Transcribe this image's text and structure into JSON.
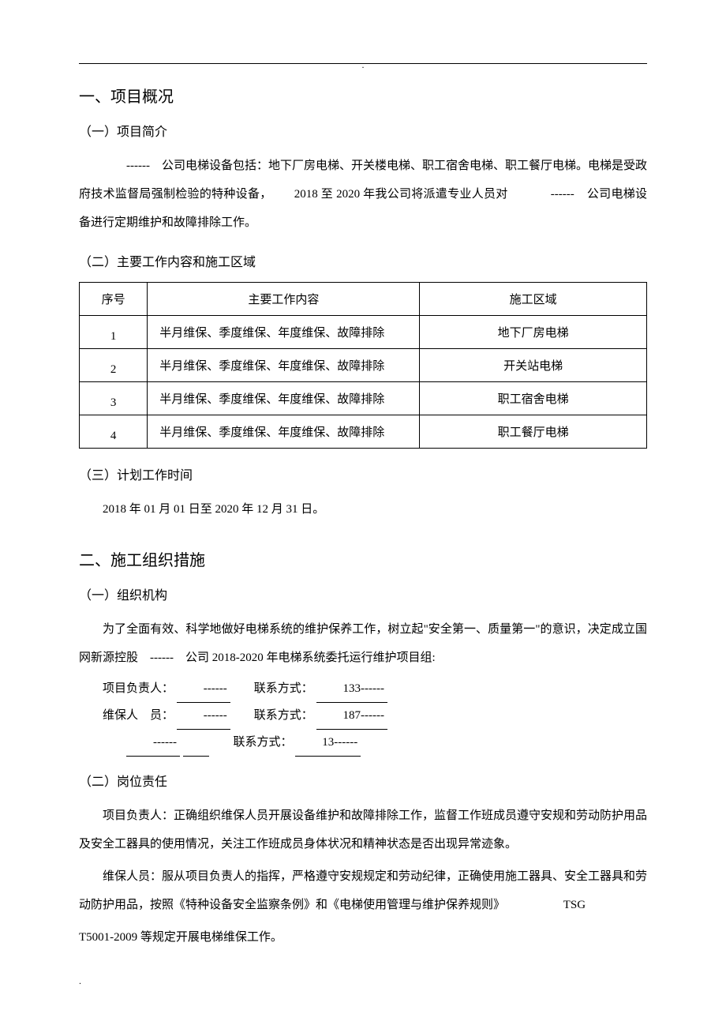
{
  "header_dot": ".",
  "section1": {
    "title": "一、项目概况",
    "sub1": {
      "title": "（一）项目简介",
      "p1_prefix": "------",
      "p1_text": "公司电梯设备包括：地下厂房电梯、开关楼电梯、职工宿舍电梯、职工餐厅电梯。电梯是受政府技术监督局强制检验的特种设备，",
      "p1_year": "2018 至 2020 年我公司将派遣专业人员对",
      "p1_fill": "------",
      "p1_suffix": "公司电梯设备进行定期维护和故障排除工作。"
    },
    "sub2": {
      "title": "（二）主要工作内容和施工区域",
      "table": {
        "headers": [
          "序号",
          "主要工作内容",
          "施工区域"
        ],
        "rows": [
          [
            "1",
            "半月维保、季度维保、年度维保、故障排除",
            "地下厂房电梯"
          ],
          [
            "2",
            "半月维保、季度维保、年度维保、故障排除",
            "开关站电梯"
          ],
          [
            "3",
            "半月维保、季度维保、年度维保、故障排除",
            "职工宿舍电梯"
          ],
          [
            "4",
            "半月维保、季度维保、年度维保、故障排除",
            "职工餐厅电梯"
          ]
        ]
      }
    },
    "sub3": {
      "title": "（三）计划工作时间",
      "p1": "2018 年 01 月 01 日至 2020 年 12 月 31 日。"
    }
  },
  "section2": {
    "title": "二、施工组织措施",
    "sub1": {
      "title": "（一）组织机构",
      "p1": "为了全面有效、科学地做好电梯系统的维护保养工作，树立起\"安全第一、质量第一\"的意识，决定成立国网新源控股",
      "p1_fill": "------",
      "p1_suffix": "公司  2018-2020 年电梯系统委托运行维护项目组:",
      "contacts": [
        {
          "role": "项目负责人：",
          "name": "------",
          "contact_label": "联系方式：",
          "phone": "133------"
        },
        {
          "role": "维保人　员：",
          "name": "------",
          "contact_label": "联系方式：",
          "phone": "187------"
        },
        {
          "role": "",
          "name": "------",
          "contact_label": "联系方式：",
          "phone": "13------"
        }
      ]
    },
    "sub2": {
      "title": "（二）岗位责任",
      "p1": "项目负责人：正确组织维保人员开展设备维护和故障排除工作，监督工作班成员遵守安规和劳动防护用品及安全工器具的使用情况，关注工作班成员身体状况和精神状态是否出现异常迹象。",
      "p2": "维保人员：服从项目负责人的指挥，严格遵守安规规定和劳动纪律，正确使用施工器具、安全工器具和劳动防护用品，按照《特种设备安全监察条例》和《电梯使用管理与维护保养规则》",
      "p2_tsg": "TSG",
      "p3": "T5001-2009 等规定开展电梯维保工作。"
    }
  },
  "footer_dot": "."
}
